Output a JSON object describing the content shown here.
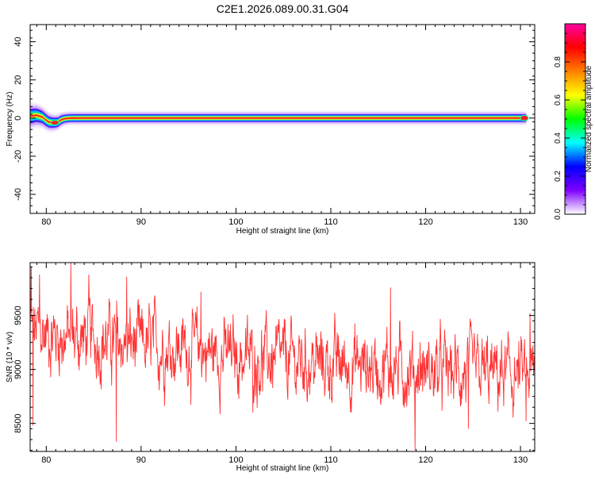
{
  "title": "C2E1.2026.089.00.31.G04",
  "chart_data": [
    {
      "type": "heatmap",
      "title": "C2E1.2026.089.00.31.G04",
      "xlabel": "Height of straight line (km)",
      "ylabel": "Frequency (Hz)",
      "xlim": [
        78.3,
        131.5
      ],
      "ylim": [
        -50,
        49
      ],
      "xticks": [
        80,
        90,
        100,
        110,
        120,
        130
      ],
      "yticks": [
        -40,
        -20,
        0,
        20,
        40
      ],
      "grid": false,
      "ridge": {
        "x": [
          78.3,
          79.0,
          79.6,
          80.2,
          80.7,
          81.2,
          81.7,
          82.5,
          84,
          90,
          100,
          110,
          120,
          130.6
        ],
        "y": [
          1.0,
          1.5,
          0.5,
          -2.0,
          -2.5,
          -2.3,
          -0.5,
          0.0,
          0.0,
          0.0,
          0.0,
          0.0,
          0.0,
          0.0
        ]
      },
      "colorbar": {
        "label": "Normalized spectral amplitude",
        "ticks": [
          0.0,
          0.2,
          0.4,
          0.6,
          0.8
        ],
        "range": [
          0,
          1
        ],
        "colors": [
          "#ffffff",
          "#7f00ff",
          "#0000ff",
          "#00ffff",
          "#00ff00",
          "#ffff00",
          "#ff8000",
          "#ff0000",
          "#ff00a0"
        ]
      }
    },
    {
      "type": "line",
      "xlabel": "Height of straight line (km)",
      "ylabel": "SNR (10 * v/v)",
      "xlim": [
        78.3,
        131.5
      ],
      "ylim": [
        8240,
        9990
      ],
      "xticks": [
        80,
        90,
        100,
        110,
        120,
        130
      ],
      "yticks": [
        8500,
        9000,
        9500
      ],
      "grid": false,
      "color": "#ff3333",
      "trend": {
        "x": [
          78.3,
          82,
          85,
          90,
          95,
          100,
          105,
          110,
          115,
          120,
          125,
          131.5
        ],
        "y": [
          9350,
          9300,
          9280,
          9220,
          9200,
          9120,
          9080,
          9050,
          9030,
          8990,
          8960,
          8930
        ]
      },
      "noise_amplitude": 230,
      "spikes": [
        {
          "x": 78.4,
          "y": 9950
        },
        {
          "x": 78.6,
          "y": 8480
        },
        {
          "x": 79.3,
          "y": 9880
        },
        {
          "x": 82.6,
          "y": 9990
        },
        {
          "x": 84.5,
          "y": 9880
        },
        {
          "x": 87.4,
          "y": 8330
        },
        {
          "x": 88.5,
          "y": 9860
        },
        {
          "x": 96.3,
          "y": 9720
        },
        {
          "x": 101.8,
          "y": 8600
        },
        {
          "x": 116.3,
          "y": 9760
        },
        {
          "x": 118.9,
          "y": 8250
        },
        {
          "x": 124.5,
          "y": 8450
        },
        {
          "x": 130.6,
          "y": 8520
        },
        {
          "x": 131.0,
          "y": 9520
        }
      ]
    }
  ]
}
